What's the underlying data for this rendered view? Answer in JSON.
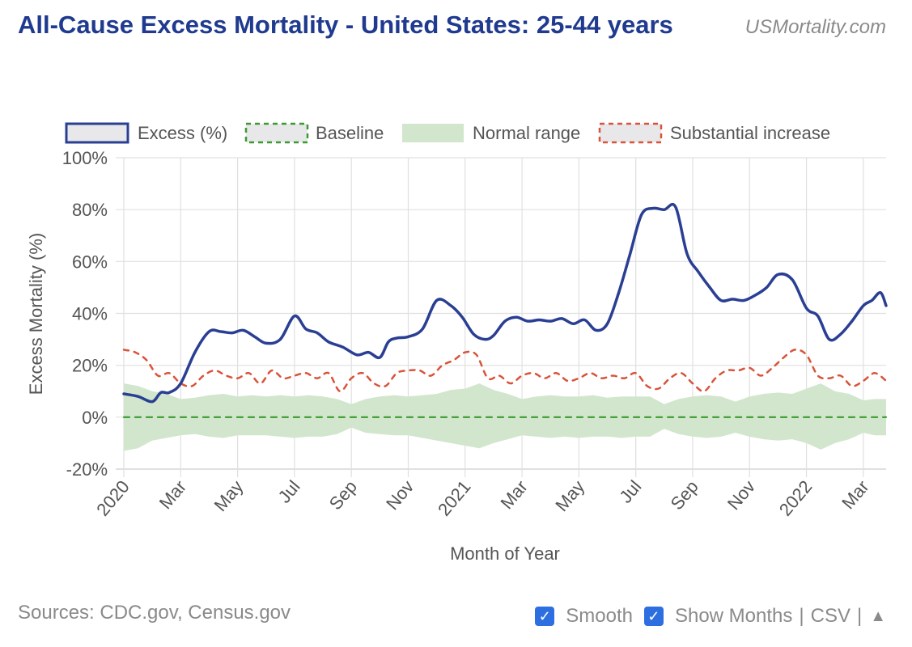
{
  "header": {
    "title": "All-Cause Excess Mortality - United States: 25-44 years",
    "brand": "USMortality.com"
  },
  "footer": {
    "sources": "Sources: CDC.gov, Census.gov",
    "smooth_label": "Smooth",
    "smooth_checked": true,
    "show_months_label": "Show Months",
    "show_months_checked": true,
    "csv_label": "CSV",
    "separator": "|",
    "up_icon": "▲",
    "check_icon": "✓"
  },
  "colors": {
    "title": "#1f3a8f",
    "excess": "#2a3f93",
    "baseline": "#3a9a2e",
    "normal_range": "#d2e6cd",
    "substantial": "#d9533a",
    "grid": "#e0e0e0",
    "axis_text": "#555555"
  },
  "chart_data": {
    "type": "line",
    "title": "All-Cause Excess Mortality - United States: 25-44 years",
    "xlabel": "Month of Year",
    "ylabel": "Excess Mortality (%)",
    "ylim": [
      -20,
      100
    ],
    "yticks": [
      -20,
      0,
      20,
      40,
      60,
      80,
      100
    ],
    "ytick_labels": [
      "-20%",
      "0%",
      "20%",
      "40%",
      "60%",
      "80%",
      "100%"
    ],
    "x_unit": "months since Jan 2020",
    "xlim": [
      0,
      26.8
    ],
    "xticks": [
      0,
      2,
      4,
      6,
      8,
      10,
      12,
      14,
      16,
      18,
      20,
      22,
      24,
      26
    ],
    "xtick_labels": [
      "2020",
      "Mar",
      "May",
      "Jul",
      "Sep",
      "Nov",
      "2021",
      "Mar",
      "May",
      "Jul",
      "Sep",
      "Nov",
      "2022",
      "Mar"
    ],
    "grid": true,
    "legend_position": "top",
    "legend": [
      "Excess (%)",
      "Baseline",
      "Normal range",
      "Substantial increase"
    ],
    "series": [
      {
        "name": "Excess (%)",
        "style": "solid",
        "x": [
          0,
          0.5,
          1.0,
          1.3,
          1.6,
          2.0,
          2.5,
          3.0,
          3.4,
          3.8,
          4.2,
          4.6,
          5.0,
          5.5,
          6.0,
          6.4,
          6.8,
          7.2,
          7.7,
          8.2,
          8.6,
          9.0,
          9.3,
          9.6,
          10.0,
          10.5,
          11.0,
          11.5,
          11.9,
          12.3,
          12.7,
          13.0,
          13.4,
          13.8,
          14.2,
          14.6,
          15.0,
          15.4,
          15.8,
          16.2,
          16.6,
          17.0,
          17.4,
          17.8,
          18.2,
          18.6,
          19.0,
          19.4,
          19.8,
          20.2,
          20.6,
          21.0,
          21.4,
          21.8,
          22.2,
          22.6,
          23.0,
          23.5,
          24.0,
          24.4,
          24.8,
          25.2,
          25.6,
          26.0,
          26.3,
          26.6,
          26.8
        ],
        "y": [
          9,
          8,
          6,
          9.5,
          9.5,
          13,
          25,
          33,
          33,
          32.5,
          33.5,
          31,
          28.5,
          30,
          39,
          34,
          32.5,
          29,
          27,
          24,
          25,
          23,
          29,
          30.5,
          31,
          34,
          45,
          43,
          38.5,
          32,
          30,
          31.5,
          37,
          38.5,
          37,
          37.5,
          37,
          38,
          36,
          37.5,
          33.5,
          36,
          48,
          63,
          78,
          80.5,
          80,
          81,
          63,
          56,
          50,
          45,
          45.5,
          45,
          47,
          50,
          55,
          53,
          42,
          39,
          30,
          32,
          37,
          43,
          45,
          48,
          43
        ]
      },
      {
        "name": "Baseline",
        "style": "dashed",
        "x": [
          0,
          26.8
        ],
        "y": [
          0,
          0
        ]
      },
      {
        "name": "Substantial increase",
        "style": "dashed",
        "x": [
          0,
          0.4,
          0.8,
          1.2,
          1.6,
          2.0,
          2.4,
          2.8,
          3.2,
          3.6,
          4.0,
          4.4,
          4.8,
          5.2,
          5.6,
          6.0,
          6.4,
          6.8,
          7.2,
          7.6,
          8.0,
          8.4,
          8.8,
          9.2,
          9.6,
          10.0,
          10.4,
          10.8,
          11.2,
          11.6,
          12.0,
          12.4,
          12.8,
          13.2,
          13.6,
          14.0,
          14.4,
          14.8,
          15.2,
          15.6,
          16.0,
          16.4,
          16.8,
          17.2,
          17.6,
          18.0,
          18.4,
          18.8,
          19.2,
          19.6,
          20.0,
          20.4,
          20.8,
          21.2,
          21.6,
          22.0,
          22.4,
          22.8,
          23.2,
          23.6,
          24.0,
          24.4,
          24.8,
          25.2,
          25.6,
          26.0,
          26.4,
          26.8
        ],
        "y": [
          26,
          25,
          22,
          16,
          17,
          13,
          12,
          16,
          18,
          16,
          15,
          17,
          13,
          18,
          15,
          16,
          17,
          15,
          17,
          10,
          15,
          17,
          13,
          12,
          17,
          18,
          18,
          16,
          20,
          22,
          25,
          24,
          15,
          16,
          13,
          16,
          17,
          15,
          17,
          14,
          15,
          17,
          15,
          16,
          15,
          17,
          12,
          11,
          15,
          17,
          13,
          10,
          15,
          18,
          18,
          19,
          16,
          19,
          23,
          26,
          24,
          16,
          15,
          16,
          12,
          14,
          17,
          14
        ]
      }
    ],
    "band": {
      "name": "Normal range",
      "x": [
        0,
        0.5,
        1.0,
        1.5,
        2.0,
        2.5,
        3.0,
        3.5,
        4.0,
        4.5,
        5.0,
        5.5,
        6.0,
        6.5,
        7.0,
        7.5,
        8.0,
        8.5,
        9.0,
        9.5,
        10.0,
        10.5,
        11.0,
        11.5,
        12.0,
        12.5,
        13.0,
        13.5,
        14.0,
        14.5,
        15.0,
        15.5,
        16.0,
        16.5,
        17.0,
        17.5,
        18.0,
        18.5,
        19.0,
        19.5,
        20.0,
        20.5,
        21.0,
        21.5,
        22.0,
        22.5,
        23.0,
        23.5,
        24.0,
        24.5,
        25.0,
        25.5,
        26.0,
        26.4,
        26.8
      ],
      "upper": [
        13,
        12,
        10,
        9,
        7,
        7.5,
        8.5,
        9,
        8,
        8.5,
        8,
        8.5,
        8,
        8.5,
        8,
        7,
        5,
        7,
        8,
        8.5,
        8,
        8.5,
        9,
        10.5,
        11,
        13,
        10.5,
        9,
        7,
        8,
        8.5,
        8,
        8,
        8.5,
        7.5,
        8,
        8,
        8,
        5,
        7,
        8,
        8.5,
        8,
        6,
        8,
        9,
        9.5,
        9,
        11,
        13,
        10,
        9,
        6.5,
        7,
        7
      ],
      "lower": [
        -13,
        -12,
        -9,
        -8,
        -7,
        -6.5,
        -7.5,
        -8,
        -7,
        -7,
        -7,
        -7.5,
        -8,
        -7.5,
        -7.5,
        -6.5,
        -4,
        -6,
        -6.5,
        -7,
        -7,
        -8,
        -9,
        -10,
        -11,
        -12,
        -10,
        -8.5,
        -7,
        -7.5,
        -8,
        -7.5,
        -8,
        -7.5,
        -7.5,
        -8,
        -7.5,
        -7.5,
        -4.5,
        -6.5,
        -7.5,
        -8,
        -7.5,
        -6,
        -7.5,
        -8.5,
        -9,
        -8.5,
        -10,
        -12.5,
        -10,
        -8.5,
        -6,
        -7,
        -7
      ]
    }
  }
}
